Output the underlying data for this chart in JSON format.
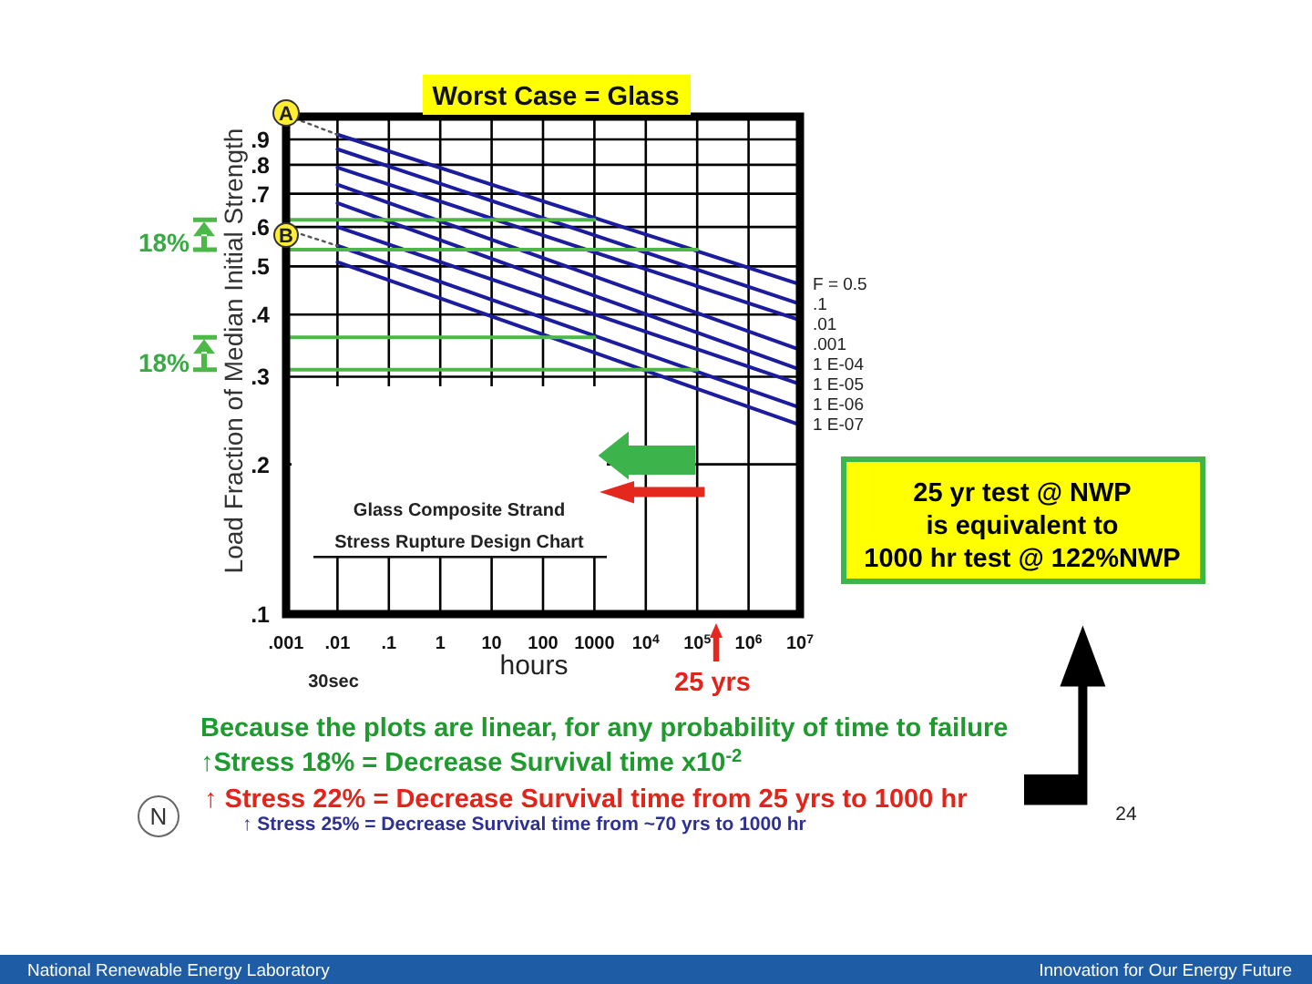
{
  "chart_data": {
    "type": "line",
    "title": "Worst Case = Glass",
    "xlabel": "hours",
    "ylabel": "Load Fraction of Median Initial Strength",
    "log": "xy",
    "grid": true,
    "xlim": [
      0.001,
      10000000
    ],
    "xticks": [
      {
        "value": 0.001,
        "label": ".001"
      },
      {
        "value": 0.01,
        "label": ".01"
      },
      {
        "value": 0.1,
        "label": ".1"
      },
      1,
      10,
      100,
      1000,
      {
        "value": 10000,
        "label": "10$^{4}$"
      },
      {
        "value": 100000,
        "label": "10$^{5}$"
      },
      {
        "value": 1000000,
        "label": "10$^{6}$"
      },
      {
        "value": 10000000,
        "label": "10$^{7}$"
      }
    ],
    "ylim": [
      0.1,
      1
    ],
    "yticks": [
      {
        "value": 0.1,
        "label": ".1"
      },
      {
        "value": 0.2,
        "label": ".2"
      },
      {
        "value": 0.3,
        "label": ".3"
      },
      {
        "value": 0.4,
        "label": ".4"
      },
      {
        "value": 0.5,
        "label": ".5"
      },
      {
        "value": 0.6,
        "label": ".6"
      },
      {
        "value": 0.7,
        "label": ".7"
      },
      {
        "value": 0.8,
        "label": ".8"
      },
      {
        "value": 0.9,
        "label": ".9"
      }
    ],
    "series": [
      {
        "name": "F = 0.5",
        "color": "#1c1c9e",
        "x": [
          0.01,
          10000000
        ],
        "values": [
          0.92,
          0.46
        ]
      },
      {
        "name": ".1",
        "color": "#1c1c9e",
        "x": [
          0.01,
          10000000
        ],
        "values": [
          0.86,
          0.42
        ]
      },
      {
        "name": ".01",
        "color": "#1c1c9e",
        "x": [
          0.01,
          10000000
        ],
        "values": [
          0.79,
          0.39
        ]
      },
      {
        "name": ".001",
        "color": "#1c1c9e",
        "x": [
          0.01,
          10000000
        ],
        "values": [
          0.73,
          0.34
        ]
      },
      {
        "name": "1 E-04",
        "color": "#1c1c9e",
        "x": [
          0.01,
          10000000
        ],
        "values": [
          0.67,
          0.31
        ]
      },
      {
        "name": "1 E-05",
        "color": "#1c1c9e",
        "x": [
          0.01,
          10000000
        ],
        "values": [
          0.6,
          0.29
        ]
      },
      {
        "name": "1 E-06",
        "color": "#1c1c9e",
        "x": [
          0.01,
          10000000
        ],
        "values": [
          0.55,
          0.26
        ]
      },
      {
        "name": "1 E-07",
        "color": "#1c1c9e",
        "x": [
          0.01,
          10000000
        ],
        "values": [
          0.51,
          0.24
        ]
      },
      {
        "color": "#555555",
        "line_style": "dotted",
        "x": [
          0.002,
          0.01
        ],
        "values": [
          0.98,
          0.92
        ]
      },
      {
        "color": "#555555",
        "line_style": "dotted",
        "x": [
          0.002,
          0.01
        ],
        "values": [
          0.58,
          0.55
        ]
      },
      {
        "color": "#4cb848",
        "x": [
          0.001,
          1000
        ],
        "values": [
          0.62,
          0.62
        ]
      },
      {
        "color": "#4cb848",
        "x": [
          0.001,
          100000
        ],
        "values": [
          0.54,
          0.54
        ]
      },
      {
        "color": "#4cb848",
        "x": [
          0.001,
          1000
        ],
        "values": [
          0.36,
          0.36
        ]
      },
      {
        "color": "#4cb848",
        "x": [
          0.001,
          100000
        ],
        "values": [
          0.31,
          0.31
        ]
      }
    ],
    "annotations": [
      "A",
      "B",
      "18%",
      "18%",
      "Glass Composite Strand",
      "Stress Rupture Design Chart",
      "30sec",
      "25 yrs",
      "25 yr test @ NWP",
      "is equivalent to",
      "1000 hr test @ 122%NWP",
      "Because the plots are linear, for any probability of time to failure",
      "↑Stress 18% = Decrease Survival time x10$^{-2}$",
      "↑ Stress 22% = Decrease Survival time from 25 yrs to 1000 hr",
      "↑ Stress 25% = Decrease Survival time from ~70 yrs to 1000 hr",
      "N",
      "24",
      "National Renewable Energy Laboratory",
      "Innovation for Our Energy Future"
    ]
  }
}
